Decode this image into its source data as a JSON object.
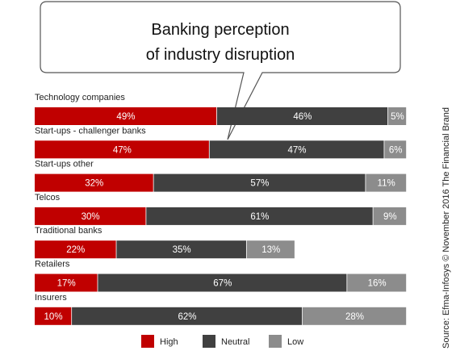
{
  "chart_data": {
    "type": "bar",
    "orientation": "horizontal",
    "stacked": true,
    "title": "Banking perception of industry disruption",
    "title_lines": [
      "Banking perception",
      "of industry disruption"
    ],
    "categories": [
      "Technology companies",
      "Start-ups - challenger banks",
      "Start-ups other",
      "Telcos",
      "Traditional banks",
      "Retailers",
      "Insurers"
    ],
    "series": [
      {
        "name": "High",
        "color": "#c00000",
        "values": [
          49,
          47,
          32,
          30,
          22,
          17,
          10
        ]
      },
      {
        "name": "Neutral",
        "color": "#404040",
        "values": [
          46,
          47,
          57,
          61,
          35,
          67,
          62
        ]
      },
      {
        "name": "Low",
        "color": "#8c8c8c",
        "values": [
          5,
          6,
          11,
          9,
          13,
          16,
          28
        ]
      }
    ],
    "data_labels": [
      [
        "49%",
        "46%",
        "5%"
      ],
      [
        "47%",
        "47%",
        "6%"
      ],
      [
        "32%",
        "57%",
        "11%"
      ],
      [
        "30%",
        "61%",
        "9%"
      ],
      [
        "22%",
        "35%",
        "13%"
      ],
      [
        "17%",
        "67%",
        "16%"
      ],
      [
        "10%",
        "62%",
        "28%"
      ]
    ],
    "xlim": [
      0,
      100
    ],
    "grid": false,
    "legend": "bottom",
    "source": "Source: Efma-Infosys © November 2016 The Financial Brand"
  }
}
